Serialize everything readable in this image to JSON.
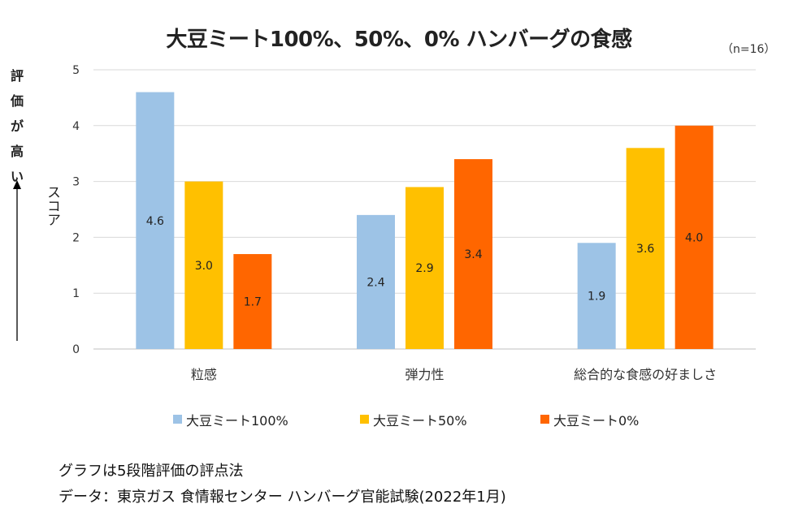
{
  "chart_data": {
    "type": "bar",
    "title": "大豆ミート100%、50%、0% ハンバーグの食感",
    "sample_size": "（n=16）",
    "xlabel": "",
    "ylabel": "スコア",
    "y_arrow_text": [
      "評",
      "価",
      "が",
      "高",
      "い"
    ],
    "ylim": [
      0,
      5
    ],
    "yticks": [
      0,
      1,
      2,
      3,
      4,
      5
    ],
    "grid": true,
    "categories": [
      "粒感",
      "弾力性",
      "総合的な食感の好ましさ"
    ],
    "series": [
      {
        "name": "大豆ミート100%",
        "color": "#9dc3e6",
        "values": [
          4.6,
          2.4,
          1.9
        ],
        "labels": [
          "4.6",
          "2.4",
          "1.9"
        ]
      },
      {
        "name": "大豆ミート50%",
        "color": "#ffc000",
        "values": [
          3.0,
          2.9,
          3.6
        ],
        "labels": [
          "3.0",
          "2.9",
          "3.6"
        ]
      },
      {
        "name": "大豆ミート0%",
        "color": "#ff6600",
        "values": [
          1.7,
          3.4,
          4.0
        ],
        "labels": [
          "1.7",
          "3.4",
          "4.0"
        ]
      }
    ],
    "legend_position": "bottom"
  },
  "footnotes": {
    "method": "グラフは5段階評価の評点法",
    "source": "データ：東京ガス 食情報センター ハンバーグ官能試験(2022年1月)"
  }
}
